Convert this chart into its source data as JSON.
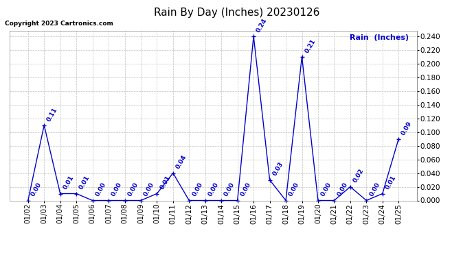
{
  "title": "Rain By Day (Inches) 20230126",
  "copyright_text": "Copyright 2023 Cartronics.com",
  "legend_label": "Rain  (Inches)",
  "dates": [
    "01/02",
    "01/03",
    "01/04",
    "01/05",
    "01/06",
    "01/07",
    "01/08",
    "01/09",
    "01/10",
    "01/11",
    "01/12",
    "01/13",
    "01/14",
    "01/15",
    "01/16",
    "01/17",
    "01/18",
    "01/19",
    "01/20",
    "01/21",
    "01/22",
    "01/23",
    "01/24",
    "01/25"
  ],
  "values": [
    0.0,
    0.11,
    0.01,
    0.01,
    0.0,
    0.0,
    0.0,
    0.0,
    0.01,
    0.04,
    0.0,
    0.0,
    0.0,
    0.0,
    0.24,
    0.03,
    0.0,
    0.21,
    0.0,
    0.0,
    0.02,
    0.0,
    0.01,
    0.09
  ],
  "line_color": "#0000cc",
  "marker_color": "#0000cc",
  "label_color": "#0000cc",
  "title_color": "#000000",
  "background_color": "#ffffff",
  "grid_color": "#c0c0c0",
  "ylim": [
    0.0,
    0.248
  ],
  "yticks": [
    0.0,
    0.02,
    0.04,
    0.06,
    0.08,
    0.1,
    0.12,
    0.14,
    0.16,
    0.18,
    0.2,
    0.22,
    0.24
  ],
  "title_fontsize": 11,
  "label_fontsize": 6.5,
  "tick_fontsize": 7.5,
  "copyright_fontsize": 6.5,
  "legend_fontsize": 8
}
